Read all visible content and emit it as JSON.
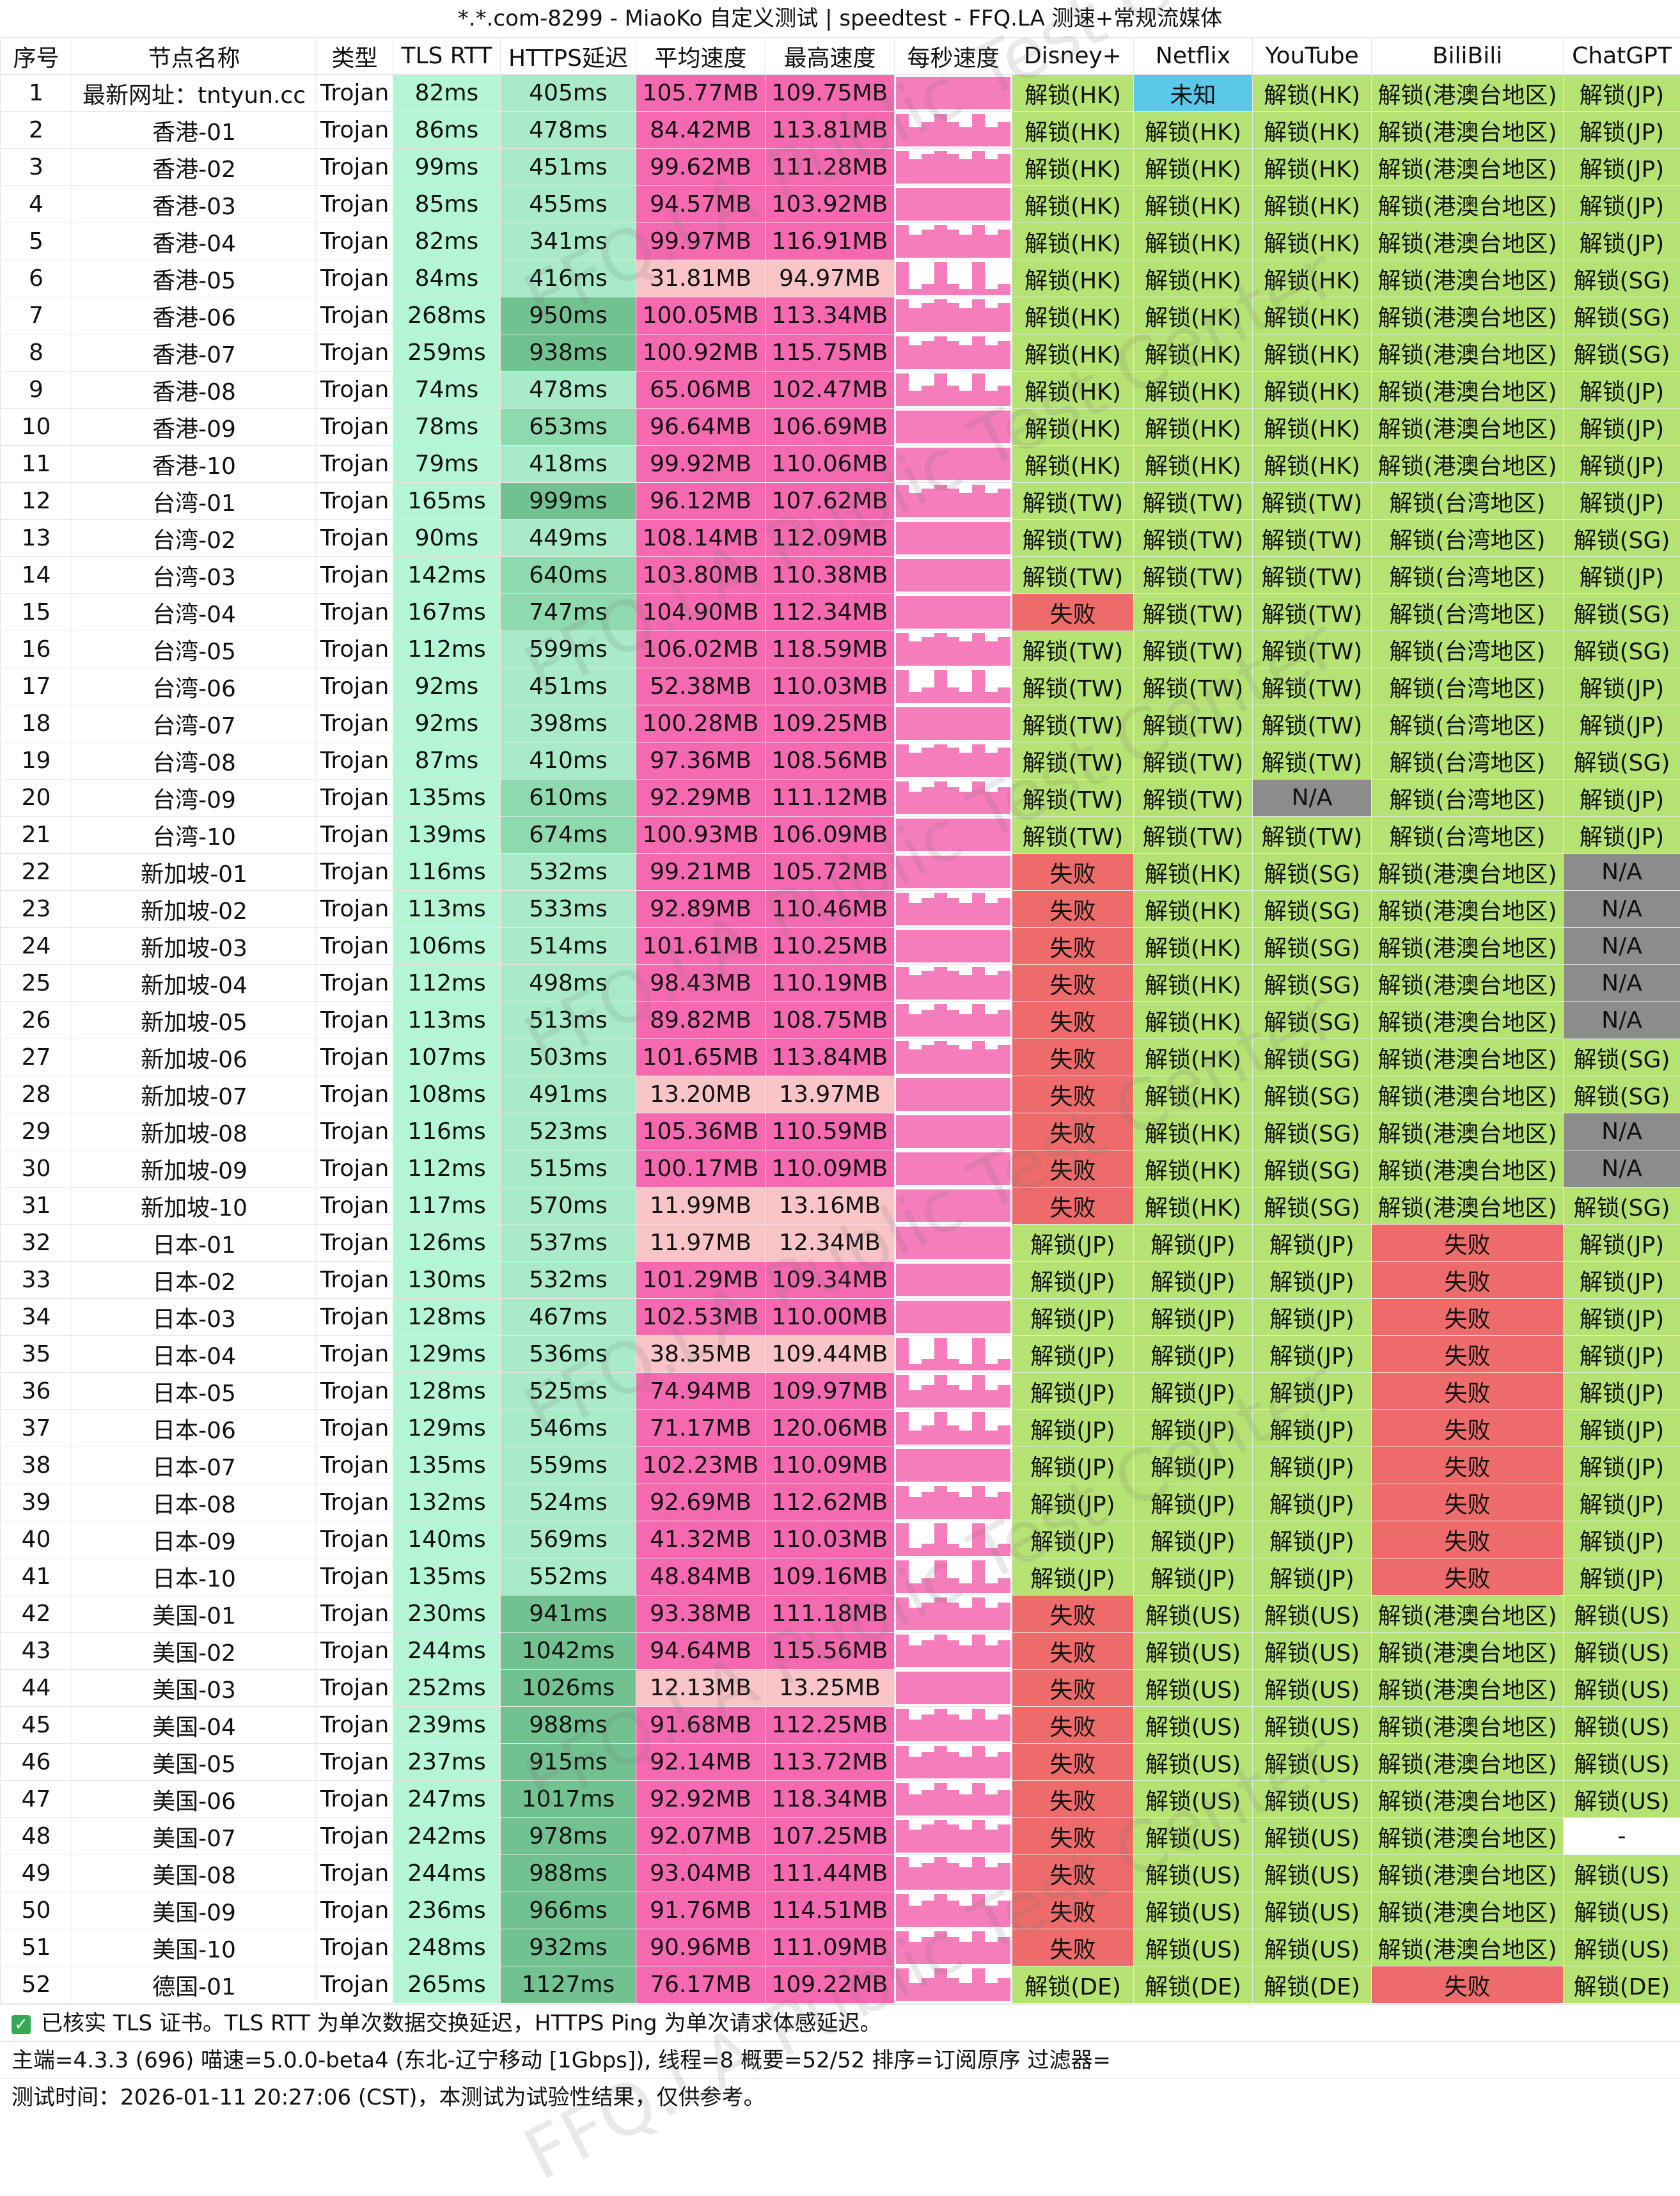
{
  "title": "*.*.com-8299 - MiaoKo 自定义测试 | speedtest - FFQ.LA 测速+常规流媒体",
  "watermark": "FFQ.LA Public Test Center",
  "headers": [
    "序号",
    "节点名称",
    "类型",
    "TLS RTT",
    "HTTPS延迟",
    "平均速度",
    "最高速度",
    "每秒速度",
    "Disney+",
    "Netflix",
    "YouTube",
    "BiliBili",
    "ChatGPT"
  ],
  "rows": [
    [
      "1",
      "最新网址：tntyun.cc",
      "Trojan",
      "82ms",
      "405ms",
      "105.77MB",
      "109.75MB",
      "",
      "解锁(HK)",
      "未知",
      "解锁(HK)",
      "解锁(港澳台地区)",
      "解锁(JP)"
    ],
    [
      "2",
      "香港-01",
      "Trojan",
      "86ms",
      "478ms",
      "84.42MB",
      "113.81MB",
      "",
      "解锁(HK)",
      "解锁(HK)",
      "解锁(HK)",
      "解锁(港澳台地区)",
      "解锁(JP)"
    ],
    [
      "3",
      "香港-02",
      "Trojan",
      "99ms",
      "451ms",
      "99.62MB",
      "111.28MB",
      "",
      "解锁(HK)",
      "解锁(HK)",
      "解锁(HK)",
      "解锁(港澳台地区)",
      "解锁(JP)"
    ],
    [
      "4",
      "香港-03",
      "Trojan",
      "85ms",
      "455ms",
      "94.57MB",
      "103.92MB",
      "",
      "解锁(HK)",
      "解锁(HK)",
      "解锁(HK)",
      "解锁(港澳台地区)",
      "解锁(JP)"
    ],
    [
      "5",
      "香港-04",
      "Trojan",
      "82ms",
      "341ms",
      "99.97MB",
      "116.91MB",
      "",
      "解锁(HK)",
      "解锁(HK)",
      "解锁(HK)",
      "解锁(港澳台地区)",
      "解锁(JP)"
    ],
    [
      "6",
      "香港-05",
      "Trojan",
      "84ms",
      "416ms",
      "31.81MB",
      "94.97MB",
      "",
      "解锁(HK)",
      "解锁(HK)",
      "解锁(HK)",
      "解锁(港澳台地区)",
      "解锁(SG)"
    ],
    [
      "7",
      "香港-06",
      "Trojan",
      "268ms",
      "950ms",
      "100.05MB",
      "113.34MB",
      "",
      "解锁(HK)",
      "解锁(HK)",
      "解锁(HK)",
      "解锁(港澳台地区)",
      "解锁(SG)"
    ],
    [
      "8",
      "香港-07",
      "Trojan",
      "259ms",
      "938ms",
      "100.92MB",
      "115.75MB",
      "",
      "解锁(HK)",
      "解锁(HK)",
      "解锁(HK)",
      "解锁(港澳台地区)",
      "解锁(SG)"
    ],
    [
      "9",
      "香港-08",
      "Trojan",
      "74ms",
      "478ms",
      "65.06MB",
      "102.47MB",
      "",
      "解锁(HK)",
      "解锁(HK)",
      "解锁(HK)",
      "解锁(港澳台地区)",
      "解锁(JP)"
    ],
    [
      "10",
      "香港-09",
      "Trojan",
      "78ms",
      "653ms",
      "96.64MB",
      "106.69MB",
      "",
      "解锁(HK)",
      "解锁(HK)",
      "解锁(HK)",
      "解锁(港澳台地区)",
      "解锁(JP)"
    ],
    [
      "11",
      "香港-10",
      "Trojan",
      "79ms",
      "418ms",
      "99.92MB",
      "110.06MB",
      "",
      "解锁(HK)",
      "解锁(HK)",
      "解锁(HK)",
      "解锁(港澳台地区)",
      "解锁(JP)"
    ],
    [
      "12",
      "台湾-01",
      "Trojan",
      "165ms",
      "999ms",
      "96.12MB",
      "107.62MB",
      "",
      "解锁(TW)",
      "解锁(TW)",
      "解锁(TW)",
      "解锁(台湾地区)",
      "解锁(JP)"
    ],
    [
      "13",
      "台湾-02",
      "Trojan",
      "90ms",
      "449ms",
      "108.14MB",
      "112.09MB",
      "",
      "解锁(TW)",
      "解锁(TW)",
      "解锁(TW)",
      "解锁(台湾地区)",
      "解锁(SG)"
    ],
    [
      "14",
      "台湾-03",
      "Trojan",
      "142ms",
      "640ms",
      "103.80MB",
      "110.38MB",
      "",
      "解锁(TW)",
      "解锁(TW)",
      "解锁(TW)",
      "解锁(台湾地区)",
      "解锁(JP)"
    ],
    [
      "15",
      "台湾-04",
      "Trojan",
      "167ms",
      "747ms",
      "104.90MB",
      "112.34MB",
      "",
      "失败",
      "解锁(TW)",
      "解锁(TW)",
      "解锁(台湾地区)",
      "解锁(SG)"
    ],
    [
      "16",
      "台湾-05",
      "Trojan",
      "112ms",
      "599ms",
      "106.02MB",
      "118.59MB",
      "",
      "解锁(TW)",
      "解锁(TW)",
      "解锁(TW)",
      "解锁(台湾地区)",
      "解锁(SG)"
    ],
    [
      "17",
      "台湾-06",
      "Trojan",
      "92ms",
      "451ms",
      "52.38MB",
      "110.03MB",
      "",
      "解锁(TW)",
      "解锁(TW)",
      "解锁(TW)",
      "解锁(台湾地区)",
      "解锁(JP)"
    ],
    [
      "18",
      "台湾-07",
      "Trojan",
      "92ms",
      "398ms",
      "100.28MB",
      "109.25MB",
      "",
      "解锁(TW)",
      "解锁(TW)",
      "解锁(TW)",
      "解锁(台湾地区)",
      "解锁(JP)"
    ],
    [
      "19",
      "台湾-08",
      "Trojan",
      "87ms",
      "410ms",
      "97.36MB",
      "108.56MB",
      "",
      "解锁(TW)",
      "解锁(TW)",
      "解锁(TW)",
      "解锁(台湾地区)",
      "解锁(SG)"
    ],
    [
      "20",
      "台湾-09",
      "Trojan",
      "135ms",
      "610ms",
      "92.29MB",
      "111.12MB",
      "",
      "解锁(TW)",
      "解锁(TW)",
      "N/A",
      "解锁(台湾地区)",
      "解锁(JP)"
    ],
    [
      "21",
      "台湾-10",
      "Trojan",
      "139ms",
      "674ms",
      "100.93MB",
      "106.09MB",
      "",
      "解锁(TW)",
      "解锁(TW)",
      "解锁(TW)",
      "解锁(台湾地区)",
      "解锁(JP)"
    ],
    [
      "22",
      "新加坡-01",
      "Trojan",
      "116ms",
      "532ms",
      "99.21MB",
      "105.72MB",
      "",
      "失败",
      "解锁(HK)",
      "解锁(SG)",
      "解锁(港澳台地区)",
      "N/A"
    ],
    [
      "23",
      "新加坡-02",
      "Trojan",
      "113ms",
      "533ms",
      "92.89MB",
      "110.46MB",
      "",
      "失败",
      "解锁(HK)",
      "解锁(SG)",
      "解锁(港澳台地区)",
      "N/A"
    ],
    [
      "24",
      "新加坡-03",
      "Trojan",
      "106ms",
      "514ms",
      "101.61MB",
      "110.25MB",
      "",
      "失败",
      "解锁(HK)",
      "解锁(SG)",
      "解锁(港澳台地区)",
      "N/A"
    ],
    [
      "25",
      "新加坡-04",
      "Trojan",
      "112ms",
      "498ms",
      "98.43MB",
      "110.19MB",
      "",
      "失败",
      "解锁(HK)",
      "解锁(SG)",
      "解锁(港澳台地区)",
      "N/A"
    ],
    [
      "26",
      "新加坡-05",
      "Trojan",
      "113ms",
      "513ms",
      "89.82MB",
      "108.75MB",
      "",
      "失败",
      "解锁(HK)",
      "解锁(SG)",
      "解锁(港澳台地区)",
      "N/A"
    ],
    [
      "27",
      "新加坡-06",
      "Trojan",
      "107ms",
      "503ms",
      "101.65MB",
      "113.84MB",
      "",
      "失败",
      "解锁(HK)",
      "解锁(SG)",
      "解锁(港澳台地区)",
      "解锁(SG)"
    ],
    [
      "28",
      "新加坡-07",
      "Trojan",
      "108ms",
      "491ms",
      "13.20MB",
      "13.97MB",
      "",
      "失败",
      "解锁(HK)",
      "解锁(SG)",
      "解锁(港澳台地区)",
      "解锁(SG)"
    ],
    [
      "29",
      "新加坡-08",
      "Trojan",
      "116ms",
      "523ms",
      "105.36MB",
      "110.59MB",
      "",
      "失败",
      "解锁(HK)",
      "解锁(SG)",
      "解锁(港澳台地区)",
      "N/A"
    ],
    [
      "30",
      "新加坡-09",
      "Trojan",
      "112ms",
      "515ms",
      "100.17MB",
      "110.09MB",
      "",
      "失败",
      "解锁(HK)",
      "解锁(SG)",
      "解锁(港澳台地区)",
      "N/A"
    ],
    [
      "31",
      "新加坡-10",
      "Trojan",
      "117ms",
      "570ms",
      "11.99MB",
      "13.16MB",
      "",
      "失败",
      "解锁(HK)",
      "解锁(SG)",
      "解锁(港澳台地区)",
      "解锁(SG)"
    ],
    [
      "32",
      "日本-01",
      "Trojan",
      "126ms",
      "537ms",
      "11.97MB",
      "12.34MB",
      "",
      "解锁(JP)",
      "解锁(JP)",
      "解锁(JP)",
      "失败",
      "解锁(JP)"
    ],
    [
      "33",
      "日本-02",
      "Trojan",
      "130ms",
      "532ms",
      "101.29MB",
      "109.34MB",
      "",
      "解锁(JP)",
      "解锁(JP)",
      "解锁(JP)",
      "失败",
      "解锁(JP)"
    ],
    [
      "34",
      "日本-03",
      "Trojan",
      "128ms",
      "467ms",
      "102.53MB",
      "110.00MB",
      "",
      "解锁(JP)",
      "解锁(JP)",
      "解锁(JP)",
      "失败",
      "解锁(JP)"
    ],
    [
      "35",
      "日本-04",
      "Trojan",
      "129ms",
      "536ms",
      "38.35MB",
      "109.44MB",
      "",
      "解锁(JP)",
      "解锁(JP)",
      "解锁(JP)",
      "失败",
      "解锁(JP)"
    ],
    [
      "36",
      "日本-05",
      "Trojan",
      "128ms",
      "525ms",
      "74.94MB",
      "109.97MB",
      "",
      "解锁(JP)",
      "解锁(JP)",
      "解锁(JP)",
      "失败",
      "解锁(JP)"
    ],
    [
      "37",
      "日本-06",
      "Trojan",
      "129ms",
      "546ms",
      "71.17MB",
      "120.06MB",
      "",
      "解锁(JP)",
      "解锁(JP)",
      "解锁(JP)",
      "失败",
      "解锁(JP)"
    ],
    [
      "38",
      "日本-07",
      "Trojan",
      "135ms",
      "559ms",
      "102.23MB",
      "110.09MB",
      "",
      "解锁(JP)",
      "解锁(JP)",
      "解锁(JP)",
      "失败",
      "解锁(JP)"
    ],
    [
      "39",
      "日本-08",
      "Trojan",
      "132ms",
      "524ms",
      "92.69MB",
      "112.62MB",
      "",
      "解锁(JP)",
      "解锁(JP)",
      "解锁(JP)",
      "失败",
      "解锁(JP)"
    ],
    [
      "40",
      "日本-09",
      "Trojan",
      "140ms",
      "569ms",
      "41.32MB",
      "110.03MB",
      "",
      "解锁(JP)",
      "解锁(JP)",
      "解锁(JP)",
      "失败",
      "解锁(JP)"
    ],
    [
      "41",
      "日本-10",
      "Trojan",
      "135ms",
      "552ms",
      "48.84MB",
      "109.16MB",
      "",
      "解锁(JP)",
      "解锁(JP)",
      "解锁(JP)",
      "失败",
      "解锁(JP)"
    ],
    [
      "42",
      "美国-01",
      "Trojan",
      "230ms",
      "941ms",
      "93.38MB",
      "111.18MB",
      "",
      "失败",
      "解锁(US)",
      "解锁(US)",
      "解锁(港澳台地区)",
      "解锁(US)"
    ],
    [
      "43",
      "美国-02",
      "Trojan",
      "244ms",
      "1042ms",
      "94.64MB",
      "115.56MB",
      "",
      "失败",
      "解锁(US)",
      "解锁(US)",
      "解锁(港澳台地区)",
      "解锁(US)"
    ],
    [
      "44",
      "美国-03",
      "Trojan",
      "252ms",
      "1026ms",
      "12.13MB",
      "13.25MB",
      "",
      "失败",
      "解锁(US)",
      "解锁(US)",
      "解锁(港澳台地区)",
      "解锁(US)"
    ],
    [
      "45",
      "美国-04",
      "Trojan",
      "239ms",
      "988ms",
      "91.68MB",
      "112.25MB",
      "",
      "失败",
      "解锁(US)",
      "解锁(US)",
      "解锁(港澳台地区)",
      "解锁(US)"
    ],
    [
      "46",
      "美国-05",
      "Trojan",
      "237ms",
      "915ms",
      "92.14MB",
      "113.72MB",
      "",
      "失败",
      "解锁(US)",
      "解锁(US)",
      "解锁(港澳台地区)",
      "解锁(US)"
    ],
    [
      "47",
      "美国-06",
      "Trojan",
      "247ms",
      "1017ms",
      "92.92MB",
      "118.34MB",
      "",
      "失败",
      "解锁(US)",
      "解锁(US)",
      "解锁(港澳台地区)",
      "解锁(US)"
    ],
    [
      "48",
      "美国-07",
      "Trojan",
      "242ms",
      "978ms",
      "92.07MB",
      "107.25MB",
      "",
      "失败",
      "解锁(US)",
      "解锁(US)",
      "解锁(港澳台地区)",
      "-"
    ],
    [
      "49",
      "美国-08",
      "Trojan",
      "244ms",
      "988ms",
      "93.04MB",
      "111.44MB",
      "",
      "失败",
      "解锁(US)",
      "解锁(US)",
      "解锁(港澳台地区)",
      "解锁(US)"
    ],
    [
      "50",
      "美国-09",
      "Trojan",
      "236ms",
      "966ms",
      "91.76MB",
      "114.51MB",
      "",
      "失败",
      "解锁(US)",
      "解锁(US)",
      "解锁(港澳台地区)",
      "解锁(US)"
    ],
    [
      "51",
      "美国-10",
      "Trojan",
      "248ms",
      "932ms",
      "90.96MB",
      "111.09MB",
      "",
      "失败",
      "解锁(US)",
      "解锁(US)",
      "解锁(港澳台地区)",
      "解锁(US)"
    ],
    [
      "52",
      "德国-01",
      "Trojan",
      "265ms",
      "1127ms",
      "76.17MB",
      "109.22MB",
      "",
      "解锁(DE)",
      "解锁(DE)",
      "解锁(DE)",
      "失败",
      "解锁(DE)"
    ]
  ],
  "footer": {
    "check_icon": "check-icon",
    "line1": "已核实 TLS 证书。TLS RTT 为单次数据交换延迟，HTTPS Ping 为单次请求体感延迟。",
    "line2": "主端=4.3.3 (696) 喵速=5.0.0-beta4 (东北-辽宁移动 [1Gbps]), 线程=8 概要=52/52 排序=订阅原序 过滤器=",
    "line3": "测试时间：2026-01-11 20:27:06 (CST)，本测试为试验性结果，仅供参考。"
  },
  "colors": {
    "tls_bg": "#b4f5d6",
    "https_light": "#a9ebc9",
    "https_mid": "#8fd9ae",
    "https_dark": "#72c291",
    "speed_pink": "#f569b1",
    "speed_light": "#f9c4c8",
    "spark_pink": "#f57dbb",
    "unlock_green": "#b5e373",
    "fail_red": "#ee6b6b",
    "unknown_blue": "#5bc8e9",
    "na_gray": "#8c8c8c",
    "header_bg": "#ffffff"
  }
}
